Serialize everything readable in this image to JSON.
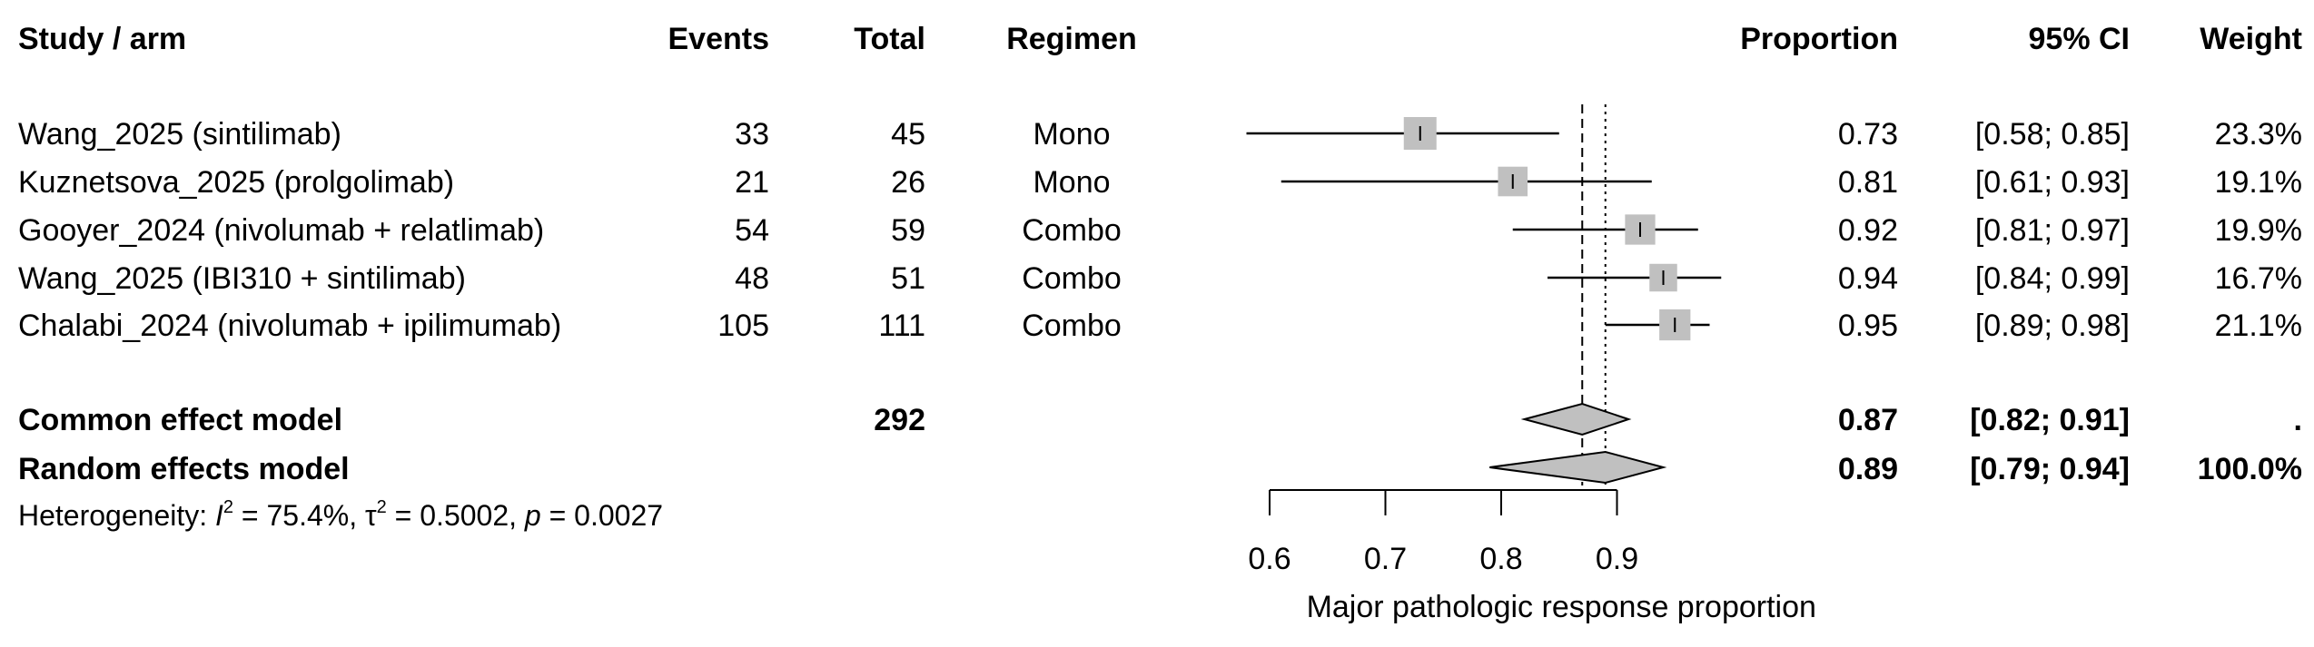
{
  "chart_data": {
    "type": "forest",
    "columns": {
      "study": "Study / arm",
      "events": "Events",
      "total": "Total",
      "regimen": "Regimen",
      "proportion": "Proportion",
      "ci": "95% CI",
      "weight": "Weight"
    },
    "studies": [
      {
        "study": "Wang_2025 (sintilimab)",
        "events": "33",
        "total": "45",
        "regimen": "Mono",
        "proportion": 0.73,
        "proportion_label": "0.73",
        "ci_low": 0.58,
        "ci_high": 0.85,
        "ci_label": "[0.58; 0.85]",
        "weight": 23.3,
        "weight_label": "23.3%"
      },
      {
        "study": "Kuznetsova_2025 (prolgolimab)",
        "events": "21",
        "total": "26",
        "regimen": "Mono",
        "proportion": 0.81,
        "proportion_label": "0.81",
        "ci_low": 0.61,
        "ci_high": 0.93,
        "ci_label": "[0.61; 0.93]",
        "weight": 19.1,
        "weight_label": "19.1%"
      },
      {
        "study": "Gooyer_2024 (nivolumab + relatlimab)",
        "events": "54",
        "total": "59",
        "regimen": "Combo",
        "proportion": 0.92,
        "proportion_label": "0.92",
        "ci_low": 0.81,
        "ci_high": 0.97,
        "ci_label": "[0.81; 0.97]",
        "weight": 19.9,
        "weight_label": "19.9%"
      },
      {
        "study": "Wang_2025 (IBI310 + sintilimab)",
        "events": "48",
        "total": "51",
        "regimen": "Combo",
        "proportion": 0.94,
        "proportion_label": "0.94",
        "ci_low": 0.84,
        "ci_high": 0.99,
        "ci_label": "[0.84; 0.99]",
        "weight": 16.7,
        "weight_label": "16.7%"
      },
      {
        "study": "Chalabi_2024 (nivolumab + ipilimumab)",
        "events": "105",
        "total": "111",
        "regimen": "Combo",
        "proportion": 0.95,
        "proportion_label": "0.95",
        "ci_low": 0.89,
        "ci_high": 0.98,
        "ci_label": "[0.89; 0.98]",
        "weight": 21.1,
        "weight_label": "21.1%"
      }
    ],
    "summary": [
      {
        "label": "Common effect model",
        "total": "292",
        "proportion": 0.87,
        "proportion_label": "0.87",
        "ci_low": 0.82,
        "ci_high": 0.91,
        "ci_label": "[0.82; 0.91]",
        "weight_label": "."
      },
      {
        "label": "Random effects model",
        "total": "",
        "proportion": 0.89,
        "proportion_label": "0.89",
        "ci_low": 0.79,
        "ci_high": 0.94,
        "ci_label": "[0.79; 0.94]",
        "weight_label": "100.0%"
      }
    ],
    "heterogeneity": {
      "prefix": "Heterogeneity: ",
      "i2_symbol": "I",
      "i2_value": " = 75.4%, ",
      "tau2_symbol": "τ",
      "tau2_value": " = 0.5002, ",
      "p_symbol": "p",
      "p_value": " = 0.0027",
      "superscript": "2"
    },
    "x_axis": {
      "label": "Major pathologic response proportion",
      "ticks": [
        0.6,
        0.7,
        0.8,
        0.9
      ],
      "tick_labels": [
        "0.6",
        "0.7",
        "0.8",
        "0.9"
      ],
      "range": [
        0.6,
        0.9
      ]
    },
    "reference_lines": {
      "common": 0.87,
      "random": 0.89
    },
    "colors": {
      "box": "#c0c0c0",
      "diamond": "#c0c0c0",
      "line": "#000000"
    }
  }
}
